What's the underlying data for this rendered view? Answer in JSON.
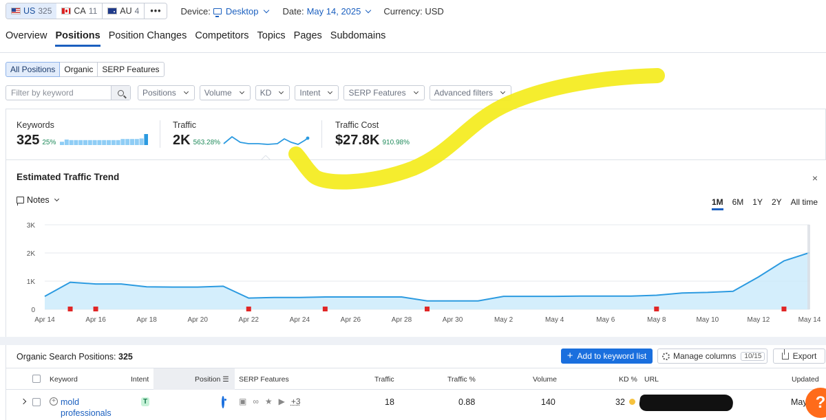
{
  "topbar": {
    "databases": [
      {
        "code": "US",
        "count": "325",
        "flag": "us-flag-icon"
      },
      {
        "code": "CA",
        "count": "11",
        "flag": "ca-flag-icon"
      },
      {
        "code": "AU",
        "count": "4",
        "flag": "au-flag-icon"
      }
    ],
    "more_label": "•••",
    "device_label": "Device:",
    "device_value": "Desktop",
    "date_label": "Date:",
    "date_value": "May 14, 2025",
    "currency_label": "Currency: USD"
  },
  "tabs": [
    "Overview",
    "Positions",
    "Position Changes",
    "Competitors",
    "Topics",
    "Pages",
    "Subdomains"
  ],
  "active_tab": "Positions",
  "subtabs": [
    "All Positions",
    "Organic",
    "SERP Features"
  ],
  "filters": {
    "search_placeholder": "Filter by keyword",
    "dropdowns": [
      "Positions",
      "Volume",
      "KD",
      "Intent",
      "SERP Features",
      "Advanced filters"
    ]
  },
  "summary": {
    "keywords": {
      "label": "Keywords",
      "value": "325",
      "change": "25%",
      "bars": [
        0.3,
        0.5,
        0.45,
        0.45,
        0.45,
        0.45,
        0.45,
        0.45,
        0.45,
        0.45,
        0.45,
        0.45,
        0.45,
        0.55,
        0.55,
        0.55,
        0.55,
        0.6,
        1.0
      ]
    },
    "traffic": {
      "label": "Traffic",
      "value": "2K",
      "change": "563.28%"
    },
    "traffic_cost": {
      "label": "Traffic Cost",
      "value": "$27.8K",
      "change": "910.98%"
    }
  },
  "trend": {
    "title": "Estimated Traffic Trend",
    "notes_label": "Notes",
    "ranges": [
      "1M",
      "6M",
      "1Y",
      "2Y",
      "All time"
    ],
    "active_range": "1M",
    "close_label": "×"
  },
  "chart_data": {
    "type": "area",
    "title": "Estimated Traffic Trend",
    "y_ticks": [
      "0",
      "1K",
      "2K",
      "3K"
    ],
    "ylim": [
      0,
      3000
    ],
    "x_tick_labels": [
      "Apr 14",
      "Apr 16",
      "Apr 18",
      "Apr 20",
      "Apr 22",
      "Apr 24",
      "Apr 26",
      "Apr 28",
      "Apr 30",
      "May 2",
      "May 4",
      "May 6",
      "May 8",
      "May 10",
      "May 12",
      "May 14"
    ],
    "x": [
      "Apr 14",
      "Apr 15",
      "Apr 16",
      "Apr 17",
      "Apr 18",
      "Apr 19",
      "Apr 20",
      "Apr 21",
      "Apr 22",
      "Apr 23",
      "Apr 24",
      "Apr 25",
      "Apr 26",
      "Apr 27",
      "Apr 28",
      "Apr 29",
      "Apr 30",
      "May 1",
      "May 2",
      "May 3",
      "May 4",
      "May 5",
      "May 6",
      "May 7",
      "May 8",
      "May 9",
      "May 10",
      "May 11",
      "May 12",
      "May 13",
      "May 14"
    ],
    "series": [
      {
        "values": [
          460,
          960,
          900,
          900,
          800,
          790,
          790,
          820,
          400,
          420,
          420,
          440,
          440,
          440,
          440,
          300,
          300,
          300,
          460,
          460,
          460,
          470,
          470,
          470,
          500,
          580,
          600,
          640,
          1150,
          1720,
          2010
        ]
      }
    ],
    "note_markers": [
      "Apr 15",
      "Apr 16",
      "Apr 22",
      "Apr 25",
      "Apr 29",
      "May 8",
      "May 13"
    ],
    "grid": true,
    "colors": {
      "line": "#2b9ae0",
      "fill": "#cdebfb",
      "marker": "#e02626"
    }
  },
  "organic": {
    "title": "Organic Search Positions:",
    "count": "325",
    "add_label": "Add to keyword list",
    "manage_label": "Manage columns",
    "manage_badge": "10/15",
    "export_label": "Export",
    "columns": [
      "Keyword",
      "Intent",
      "Position",
      "SERP Features",
      "Traffic",
      "Traffic %",
      "Volume",
      "KD %",
      "URL",
      "Updated"
    ],
    "rows": [
      {
        "keyword": "mold professionals",
        "intent": "T",
        "serp_more": "+3",
        "traffic": "18",
        "traffic_pct": "0.88",
        "volume": "140",
        "kd": "32",
        "updated": "May"
      }
    ]
  },
  "help_label": "?"
}
